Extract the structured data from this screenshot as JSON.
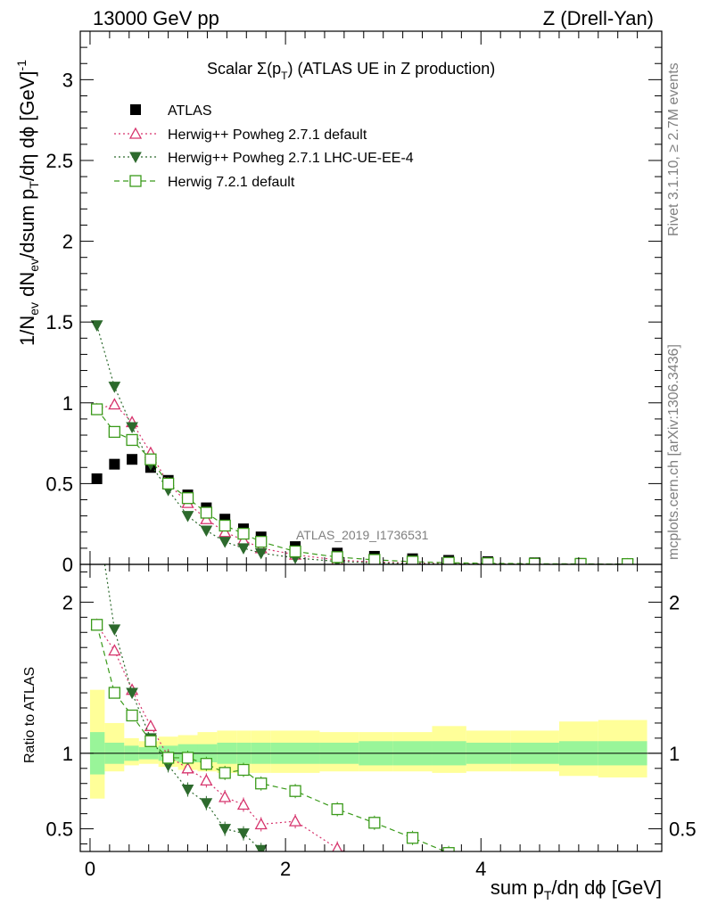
{
  "header": {
    "left": "13000 GeV pp",
    "right": "Z (Drell-Yan)"
  },
  "side_labels": {
    "rivet": "Rivet 3.1.10, ≥ 2.7M events",
    "mcplots": "mcplots.cern.ch [arXiv:1306.3436]"
  },
  "chart_data": {
    "type": "scatter",
    "title": "Scalar Σ(pT) (ATLAS UE in Z production)",
    "title_main": "Scalar Σ(p",
    "title_sub": "T",
    "title_tail": ") (ATLAS UE in Z production)",
    "analysis_id": "ATLAS_2019_I1736531",
    "xlabel": "sum pT/dη dϕ [GeV]",
    "xlabel_parts": {
      "a": "sum p",
      "sub": "T",
      "b": "/dη dϕ [GeV]"
    },
    "ylabel": "1/Nev dNev/dsum pT/dη dϕ [GeV]^-1",
    "ylabel_parts": {
      "a": "1/N",
      "sub1": "ev",
      "b": " dN",
      "sub2": "ev",
      "c": "/dsum p",
      "sub3": "T",
      "d": "/dη dϕ  [GeV]",
      "sup": "-1"
    },
    "ratio_ylabel": "Ratio to ATLAS",
    "xlim": [
      -0.1,
      5.85
    ],
    "ylim": [
      0,
      3.3
    ],
    "ratio_ylim": [
      0.35,
      2.25
    ],
    "x_ticks": [
      0,
      2,
      4
    ],
    "y_ticks": [
      0,
      0.5,
      1,
      1.5,
      2,
      2.5,
      3
    ],
    "ratio_ticks": [
      0.5,
      1,
      2
    ],
    "bins": [
      0,
      0.15,
      0.35,
      0.5,
      0.7,
      0.9,
      1.1,
      1.3,
      1.5,
      1.65,
      1.85,
      2.35,
      2.75,
      3.1,
      3.5,
      3.85,
      4.3,
      4.8,
      5.2,
      5.7
    ],
    "x": [
      0.07,
      0.25,
      0.43,
      0.62,
      0.8,
      1.0,
      1.19,
      1.38,
      1.57,
      1.75,
      2.1,
      2.53,
      2.91,
      3.3,
      3.67,
      4.07,
      4.55,
      5.02,
      5.5
    ],
    "series": [
      {
        "name": "ATLAS",
        "marker": "square",
        "color": "#000000",
        "values": [
          0.53,
          0.62,
          0.65,
          0.6,
          0.52,
          0.43,
          0.35,
          0.28,
          0.22,
          0.17,
          0.11,
          0.07,
          0.05,
          0.035,
          0.025,
          0.017,
          0.01,
          0.006,
          0.004
        ]
      },
      {
        "name": "Herwig++ Powheg 2.7.1 default",
        "marker": "triangle-up-open",
        "color": "#d6336c",
        "line": "dotted",
        "values": [
          0.96,
          0.99,
          0.88,
          0.69,
          0.5,
          0.38,
          0.28,
          0.2,
          0.15,
          0.1,
          0.06,
          0.027,
          0.014,
          0.008,
          0.005,
          0.003,
          0.002,
          0.001,
          0.0007
        ],
        "ratio": [
          1.85,
          1.68,
          1.42,
          1.18,
          0.98,
          0.9,
          0.82,
          0.71,
          0.66,
          0.53,
          0.55,
          0.37,
          0.28,
          0.2,
          0.15,
          0.12,
          0.1,
          0.09,
          0.08
        ]
      },
      {
        "name": "Herwig++ Powheg 2.7.1 LHC-UE-EE-4",
        "marker": "triangle-down",
        "color": "#2d6a2d",
        "line": "dotted",
        "values": [
          1.48,
          1.1,
          0.85,
          0.62,
          0.46,
          0.3,
          0.21,
          0.14,
          0.1,
          0.07,
          0.04,
          0.018,
          0.009,
          0.005,
          0.003,
          0.002,
          0.001,
          0.0007,
          0.0005
        ],
        "ratio": [
          2.6,
          1.82,
          1.4,
          1.1,
          0.92,
          0.76,
          0.67,
          0.5,
          0.47,
          0.36,
          0.3,
          0.22,
          0.16,
          0.12,
          0.09,
          0.07,
          0.06,
          0.05,
          0.04
        ]
      },
      {
        "name": "Herwig 7.2.1 default",
        "marker": "square-open",
        "color": "#3a9a1a",
        "line": "dashed",
        "values": [
          0.96,
          0.82,
          0.77,
          0.65,
          0.5,
          0.41,
          0.32,
          0.24,
          0.19,
          0.14,
          0.08,
          0.045,
          0.028,
          0.017,
          0.01,
          0.007,
          0.004,
          0.003,
          0.002
        ],
        "ratio": [
          1.85,
          1.4,
          1.25,
          1.08,
          0.97,
          0.97,
          0.93,
          0.87,
          0.89,
          0.8,
          0.75,
          0.63,
          0.54,
          0.44,
          0.34,
          0.3,
          0.27,
          0.25,
          0.23
        ]
      }
    ],
    "band_green": [
      [
        0.86,
        1.14
      ],
      [
        0.93,
        1.07
      ],
      [
        0.95,
        1.05
      ],
      [
        0.96,
        1.04
      ],
      [
        0.95,
        1.05
      ],
      [
        0.94,
        1.06
      ],
      [
        0.94,
        1.06
      ],
      [
        0.93,
        1.07
      ],
      [
        0.93,
        1.07
      ],
      [
        0.93,
        1.07
      ],
      [
        0.93,
        1.07
      ],
      [
        0.93,
        1.07
      ],
      [
        0.92,
        1.08
      ],
      [
        0.92,
        1.08
      ],
      [
        0.92,
        1.08
      ],
      [
        0.93,
        1.07
      ],
      [
        0.93,
        1.07
      ],
      [
        0.92,
        1.08
      ],
      [
        0.92,
        1.08
      ]
    ],
    "band_yellow": [
      [
        0.7,
        1.42
      ],
      [
        0.88,
        1.2
      ],
      [
        0.92,
        1.1
      ],
      [
        0.93,
        1.08
      ],
      [
        0.91,
        1.11
      ],
      [
        0.89,
        1.12
      ],
      [
        0.88,
        1.14
      ],
      [
        0.87,
        1.15
      ],
      [
        0.87,
        1.15
      ],
      [
        0.87,
        1.15
      ],
      [
        0.87,
        1.15
      ],
      [
        0.88,
        1.14
      ],
      [
        0.88,
        1.14
      ],
      [
        0.88,
        1.14
      ],
      [
        0.87,
        1.18
      ],
      [
        0.88,
        1.15
      ],
      [
        0.88,
        1.15
      ],
      [
        0.85,
        1.21
      ],
      [
        0.84,
        1.22
      ]
    ]
  }
}
